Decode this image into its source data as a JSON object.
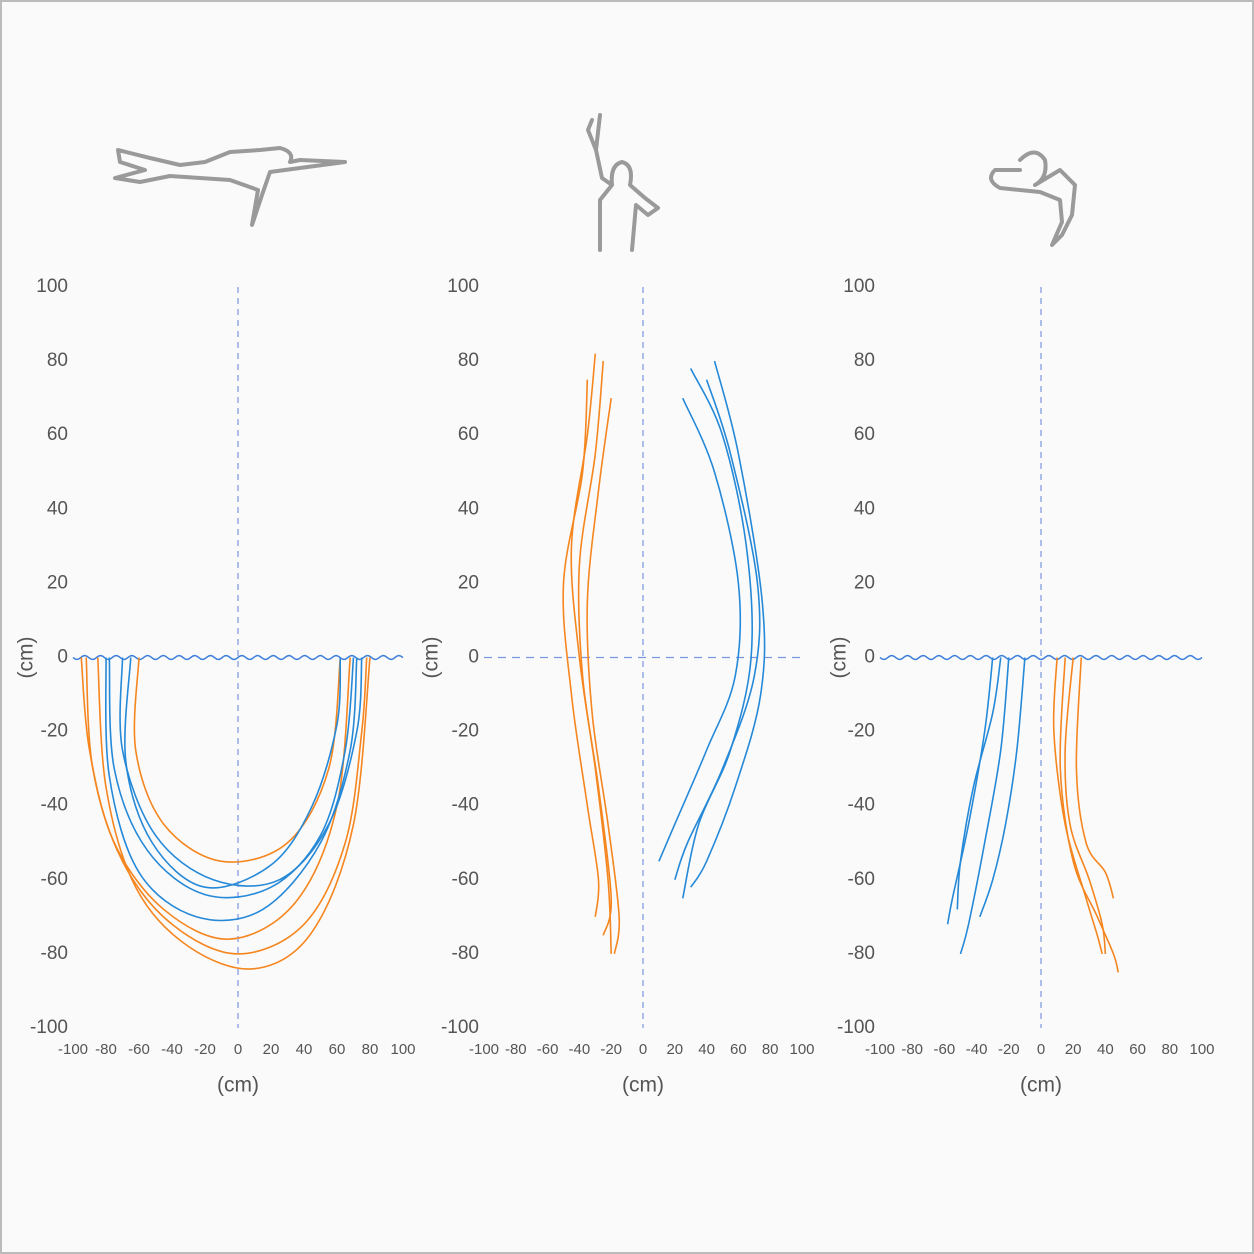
{
  "chart_data": [
    {
      "type": "line",
      "xlabel": "(cm)",
      "ylabel": "(cm)",
      "xlim": [
        -100,
        100
      ],
      "ylim": [
        -100,
        100
      ],
      "xticks": [
        -100,
        -80,
        -60,
        -40,
        -20,
        0,
        20,
        40,
        60,
        80,
        100
      ],
      "yticks": [
        -100,
        -80,
        -60,
        -40,
        -20,
        0,
        20,
        40,
        60,
        80,
        100
      ],
      "surface_line": "wave",
      "series": [
        {
          "color": "#f5861f",
          "x": [
            -92,
            -88,
            -70,
            -40,
            0,
            40,
            65,
            75,
            78
          ],
          "values": [
            0,
            -30,
            -55,
            -72,
            -80,
            -72,
            -50,
            -20,
            0
          ]
        },
        {
          "color": "#f5861f",
          "x": [
            -85,
            -80,
            -62,
            -30,
            10,
            45,
            70,
            80
          ],
          "values": [
            0,
            -35,
            -62,
            -78,
            -84,
            -74,
            -45,
            0
          ]
        },
        {
          "color": "#f5861f",
          "x": [
            -60,
            -62,
            -45,
            -10,
            30,
            55,
            62
          ],
          "values": [
            0,
            -25,
            -45,
            -55,
            -50,
            -30,
            0
          ]
        },
        {
          "color": "#f5861f",
          "x": [
            -95,
            -90,
            -75,
            -45,
            -5,
            35,
            60,
            68
          ],
          "values": [
            0,
            -25,
            -50,
            -68,
            -76,
            -66,
            -40,
            0
          ]
        },
        {
          "color": "#2589d8",
          "x": [
            -78,
            -75,
            -55,
            -20,
            20,
            50,
            65,
            70
          ],
          "values": [
            0,
            -30,
            -52,
            -64,
            -62,
            -48,
            -25,
            0
          ]
        },
        {
          "color": "#2589d8",
          "x": [
            -70,
            -70,
            -50,
            -15,
            25,
            55,
            72,
            75
          ],
          "values": [
            0,
            -25,
            -48,
            -60,
            -60,
            -45,
            -20,
            0
          ]
        },
        {
          "color": "#2589d8",
          "x": [
            -80,
            -78,
            -60,
            -25,
            15,
            50,
            68,
            72
          ],
          "values": [
            0,
            -32,
            -58,
            -70,
            -68,
            -50,
            -25,
            0
          ]
        },
        {
          "color": "#2589d8",
          "x": [
            -65,
            -68,
            -52,
            -20,
            20,
            45,
            60,
            62
          ],
          "values": [
            0,
            -28,
            -50,
            -62,
            -56,
            -40,
            -18,
            0
          ]
        }
      ]
    },
    {
      "type": "line",
      "xlabel": "(cm)",
      "ylabel": "(cm)",
      "xlim": [
        -100,
        100
      ],
      "ylim": [
        -100,
        100
      ],
      "xticks": [
        -100,
        -80,
        -60,
        -40,
        -20,
        0,
        20,
        40,
        60,
        80,
        100
      ],
      "yticks": [
        -100,
        -80,
        -60,
        -40,
        -20,
        0,
        20,
        40,
        60,
        80,
        100
      ],
      "surface_line": "dashed",
      "series": [
        {
          "color": "#f5861f",
          "x": [
            -30,
            -35,
            -45,
            -40,
            -30,
            -22,
            -20
          ],
          "values": [
            82,
            60,
            30,
            0,
            -30,
            -60,
            -80
          ]
        },
        {
          "color": "#f5861f",
          "x": [
            -25,
            -30,
            -40,
            -38,
            -28,
            -20,
            -25
          ],
          "values": [
            80,
            55,
            25,
            -5,
            -35,
            -65,
            -75
          ]
        },
        {
          "color": "#f5861f",
          "x": [
            -35,
            -38,
            -50,
            -45,
            -35,
            -28,
            -30
          ],
          "values": [
            75,
            50,
            20,
            -10,
            -40,
            -60,
            -70
          ]
        },
        {
          "color": "#f5861f",
          "x": [
            -20,
            -28,
            -35,
            -32,
            -22,
            -15,
            -18
          ],
          "values": [
            70,
            45,
            15,
            -15,
            -45,
            -70,
            -80
          ]
        },
        {
          "color": "#2589d8",
          "x": [
            30,
            50,
            65,
            68,
            55,
            35,
            25
          ],
          "values": [
            78,
            60,
            30,
            0,
            -25,
            -45,
            -65
          ]
        },
        {
          "color": "#2589d8",
          "x": [
            40,
            55,
            72,
            70,
            50,
            28,
            20
          ],
          "values": [
            75,
            55,
            20,
            -5,
            -30,
            -50,
            -60
          ]
        },
        {
          "color": "#2589d8",
          "x": [
            25,
            45,
            60,
            58,
            40,
            20,
            10
          ],
          "values": [
            70,
            50,
            20,
            -5,
            -25,
            -45,
            -55
          ]
        },
        {
          "color": "#2589d8",
          "x": [
            45,
            60,
            75,
            74,
            58,
            40,
            30
          ],
          "values": [
            80,
            55,
            15,
            -10,
            -35,
            -55,
            -62
          ]
        }
      ]
    },
    {
      "type": "line",
      "xlabel": "(cm)",
      "ylabel": "(cm)",
      "xlim": [
        -100,
        100
      ],
      "ylim": [
        -100,
        100
      ],
      "xticks": [
        -100,
        -80,
        -60,
        -40,
        -20,
        0,
        20,
        40,
        60,
        80,
        100
      ],
      "yticks": [
        -100,
        -80,
        -60,
        -40,
        -20,
        0,
        20,
        40,
        60,
        80,
        100
      ],
      "surface_line": "wave",
      "series": [
        {
          "color": "#2589d8",
          "x": [
            -30,
            -35,
            -45,
            -55,
            -58
          ],
          "values": [
            0,
            -20,
            -45,
            -65,
            -72
          ]
        },
        {
          "color": "#2589d8",
          "x": [
            -20,
            -25,
            -35,
            -45,
            -50
          ],
          "values": [
            0,
            -25,
            -50,
            -72,
            -80
          ]
        },
        {
          "color": "#2589d8",
          "x": [
            -10,
            -15,
            -22,
            -30,
            -38
          ],
          "values": [
            0,
            -25,
            -45,
            -60,
            -70
          ]
        },
        {
          "color": "#2589d8",
          "x": [
            -25,
            -30,
            -42,
            -50,
            -52
          ],
          "values": [
            0,
            -15,
            -35,
            -55,
            -68
          ]
        },
        {
          "color": "#f5861f",
          "x": [
            15,
            12,
            20,
            35,
            45,
            48
          ],
          "values": [
            0,
            -30,
            -55,
            -70,
            -80,
            -85
          ]
        },
        {
          "color": "#f5861f",
          "x": [
            20,
            15,
            18,
            30,
            38,
            40
          ],
          "values": [
            0,
            -25,
            -45,
            -60,
            -72,
            -80
          ]
        },
        {
          "color": "#f5861f",
          "x": [
            25,
            22,
            28,
            40,
            45
          ],
          "values": [
            0,
            -30,
            -50,
            -58,
            -65
          ]
        },
        {
          "color": "#f5861f",
          "x": [
            10,
            8,
            15,
            28,
            35,
            38
          ],
          "values": [
            0,
            -20,
            -45,
            -65,
            -75,
            -80
          ]
        }
      ]
    }
  ]
}
